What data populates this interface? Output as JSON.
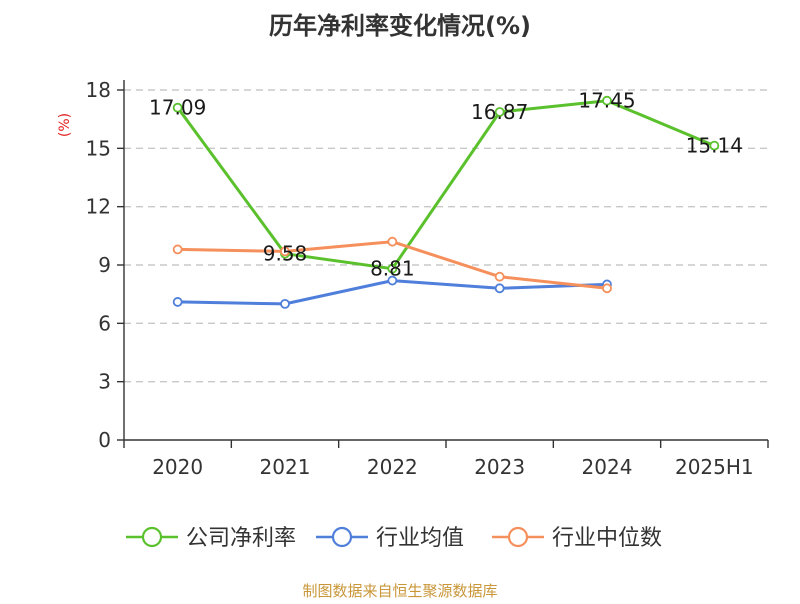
{
  "chart_data": {
    "type": "line",
    "title": "历年净利率变化情况(%)",
    "ylabel": "(%)",
    "xlabel": "",
    "categories": [
      "2020",
      "2021",
      "2022",
      "2023",
      "2024",
      "2025H1"
    ],
    "ylim": [
      0,
      18
    ],
    "yticks": [
      0,
      3,
      6,
      9,
      12,
      15,
      18
    ],
    "grid": true,
    "legend_position": "bottom",
    "series": [
      {
        "name": "公司净利率",
        "color": "#5ac12d",
        "values": [
          17.09,
          9.58,
          8.81,
          16.87,
          17.45,
          15.14
        ],
        "labels": [
          "17.09",
          "9.58",
          "8.81",
          "16.87",
          "17.45",
          "15.14"
        ]
      },
      {
        "name": "行业均值",
        "color": "#4f7fdb",
        "values": [
          7.1,
          7.0,
          8.2,
          7.8,
          8.0,
          null
        ]
      },
      {
        "name": "行业中位数",
        "color": "#f5905c",
        "values": [
          9.8,
          9.7,
          10.2,
          8.4,
          7.8,
          null
        ]
      }
    ]
  },
  "source": "制图数据来自恒生聚源数据库"
}
